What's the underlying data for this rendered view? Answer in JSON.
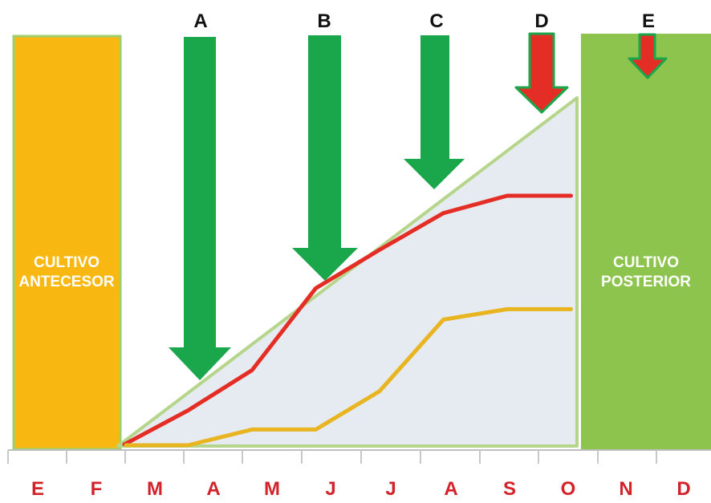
{
  "blocks": {
    "left": {
      "line1": "CULTIVO",
      "line2": "ANTECESOR"
    },
    "right": {
      "line1": "CULTIVO",
      "line2": "POSTERIOR"
    }
  },
  "arrows": [
    {
      "label": "A",
      "color": "green"
    },
    {
      "label": "B",
      "color": "green"
    },
    {
      "label": "C",
      "color": "green"
    },
    {
      "label": "D",
      "color": "red"
    },
    {
      "label": "E",
      "color": "red"
    }
  ],
  "months": [
    "E",
    "F",
    "M",
    "A",
    "M",
    "J",
    "J",
    "A",
    "S",
    "O",
    "N",
    "D"
  ],
  "chart_data": {
    "type": "line",
    "categories": [
      "M",
      "A",
      "M",
      "J",
      "J",
      "A",
      "S",
      "O"
    ],
    "series": [
      {
        "values": [
          0.05,
          2.0,
          4.3,
          9.0,
          11.2,
          13.3,
          14.3,
          14.3
        ]
      },
      {
        "values": [
          0,
          0,
          0.9,
          0.9,
          3.1,
          7.2,
          7.8,
          7.8
        ]
      }
    ],
    "ylim": [
      0,
      20
    ]
  },
  "colors": {
    "antecesor": "#f9b811",
    "posterior": "#8dc44e",
    "green_arrow": "#1aa64a",
    "red_arrow": "#e42d24",
    "red_line": "#e42d24",
    "yellow_line": "#e8b41f",
    "triangle_fill": "#e6ebf1",
    "triangle_stroke": "#b5d68a",
    "month_text": "#d2232a"
  }
}
